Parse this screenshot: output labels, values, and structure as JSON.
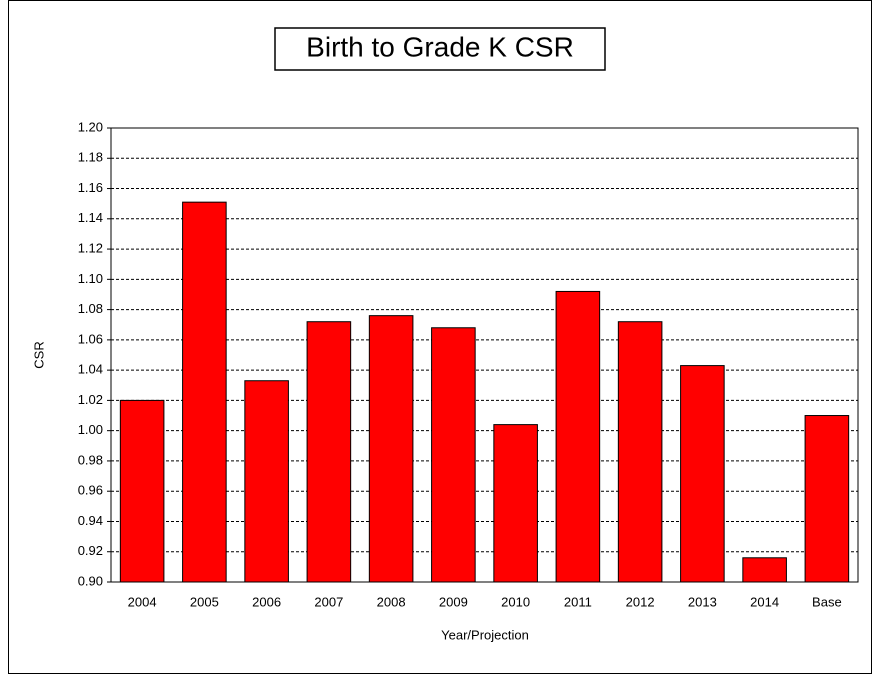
{
  "chart_data": {
    "type": "bar",
    "title": "Birth to Grade K CSR",
    "x_label": "Year/Projection",
    "y_label": "CSR",
    "categories": [
      "2004",
      "2005",
      "2006",
      "2007",
      "2008",
      "2009",
      "2010",
      "2011",
      "2012",
      "2013",
      "2014",
      "Base"
    ],
    "values": [
      1.02,
      1.151,
      1.033,
      1.072,
      1.076,
      1.068,
      1.004,
      1.092,
      1.072,
      1.043,
      0.916,
      1.01
    ],
    "color": "#ff0000",
    "ylim": [
      0.9,
      1.2
    ],
    "yticks": [
      {
        "value": 0.9,
        "label": "0.90"
      },
      0.92,
      0.94,
      0.96,
      0.98,
      {
        "value": 1.0,
        "label": "1.00"
      },
      1.02,
      1.04,
      1.06,
      1.08,
      {
        "value": 1.1,
        "label": "1.10"
      },
      1.12,
      1.14,
      1.16,
      1.18,
      {
        "value": 1.2,
        "label": "1.20"
      }
    ],
    "grid": true
  }
}
